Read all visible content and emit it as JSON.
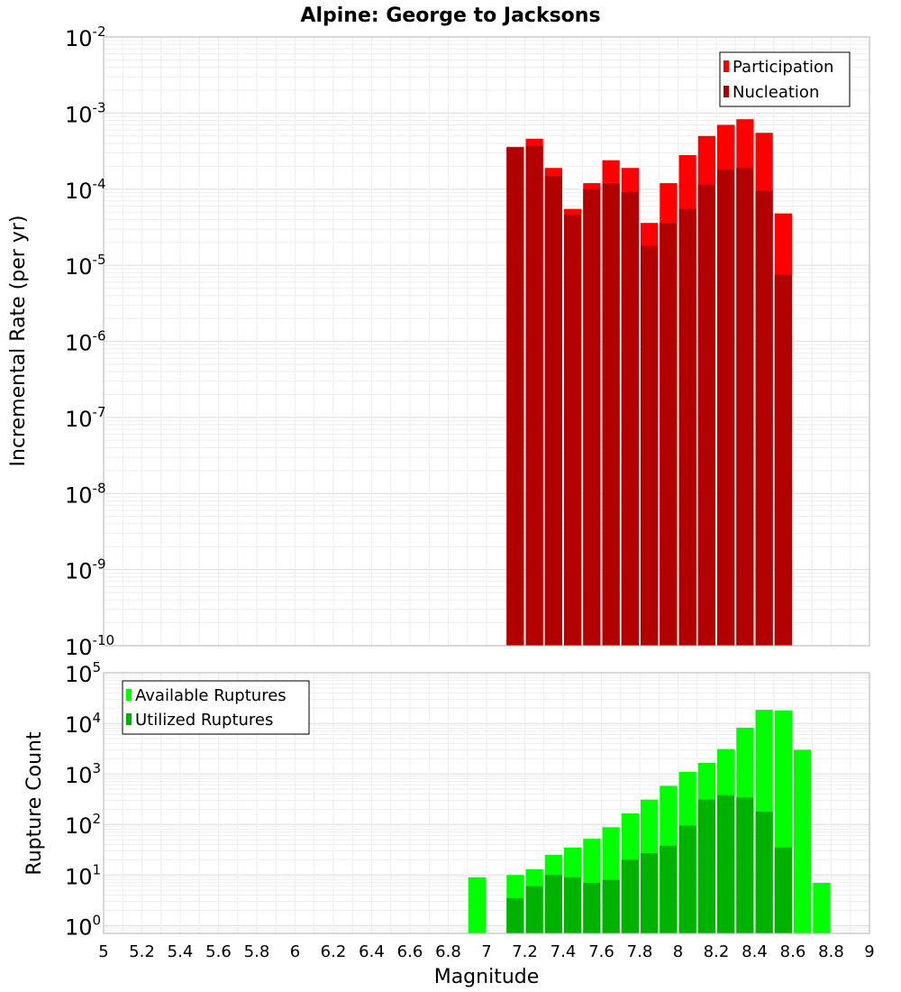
{
  "chart_data": [
    {
      "type": "bar",
      "title": "Alpine: George to Jacksons",
      "xlabel": "",
      "ylabel": "Incremental Rate (per yr)",
      "yscale": "log",
      "ylim": [
        1e-10,
        0.01
      ],
      "xlim": [
        5,
        9
      ],
      "y_tick_labels": [
        {
          "base": "10",
          "exp": "-10"
        },
        {
          "base": "10",
          "exp": "-9"
        },
        {
          "base": "10",
          "exp": "-8"
        },
        {
          "base": "10",
          "exp": "-7"
        },
        {
          "base": "10",
          "exp": "-6"
        },
        {
          "base": "10",
          "exp": "-5"
        },
        {
          "base": "10",
          "exp": "-4"
        },
        {
          "base": "10",
          "exp": "-3"
        },
        {
          "base": "10",
          "exp": "-2"
        }
      ],
      "legend_position": "top-right",
      "grid": true,
      "bar_width": 0.1,
      "x": [
        7.15,
        7.25,
        7.35,
        7.45,
        7.55,
        7.65,
        7.75,
        7.85,
        7.95,
        8.05,
        8.15,
        8.25,
        8.35,
        8.45,
        8.55
      ],
      "series": [
        {
          "name": "Participation",
          "color": "#ff0000",
          "values": [
            0.00036,
            0.00046,
            0.00019,
            5.5e-05,
            0.00012,
            0.00024,
            0.00019,
            3.6e-05,
            0.00012,
            0.00028,
            0.0005,
            0.0007,
            0.00083,
            0.00055,
            4.8e-05
          ]
        },
        {
          "name": "Nucleation",
          "color": "#b20000",
          "values": [
            0.00035,
            0.00037,
            0.00015,
            4.6e-05,
            0.0001,
            0.00012,
            9.2e-05,
            1.8e-05,
            3.6e-05,
            5.5e-05,
            0.000115,
            0.00018,
            0.00019,
            9.5e-05,
            7.5e-06
          ]
        }
      ]
    },
    {
      "type": "bar",
      "title": "",
      "xlabel": "Magnitude",
      "ylabel": "Rupture Count",
      "yscale": "log",
      "ylim": [
        0.7,
        100000
      ],
      "xlim": [
        5,
        9
      ],
      "y_tick_labels": [
        {
          "base": "10",
          "exp": "0"
        },
        {
          "base": "10",
          "exp": "1"
        },
        {
          "base": "10",
          "exp": "2"
        },
        {
          "base": "10",
          "exp": "3"
        },
        {
          "base": "10",
          "exp": "4"
        },
        {
          "base": "10",
          "exp": "5"
        }
      ],
      "x_ticks": [
        "5",
        "5.2",
        "5.4",
        "5.6",
        "5.8",
        "6",
        "6.2",
        "6.4",
        "6.6",
        "6.8",
        "7",
        "7.2",
        "7.4",
        "7.6",
        "7.8",
        "8",
        "8.2",
        "8.4",
        "8.6",
        "8.8",
        "9"
      ],
      "legend_position": "top-left",
      "grid": true,
      "bar_width": 0.1,
      "series": [
        {
          "name": "Available Ruptures",
          "color": "#00ff00",
          "x": [
            6.95,
            7.15,
            7.25,
            7.35,
            7.45,
            7.55,
            7.65,
            7.75,
            7.85,
            7.95,
            8.05,
            8.15,
            8.25,
            8.35,
            8.45,
            8.55,
            8.65,
            8.75
          ],
          "values": [
            9,
            10,
            13,
            25,
            35,
            52,
            88,
            165,
            310,
            580,
            1100,
            1650,
            3100,
            8200,
            18500,
            18000,
            3000,
            7
          ]
        },
        {
          "name": "Utilized Ruptures",
          "color": "#00b200",
          "x": [
            7.15,
            7.25,
            7.35,
            7.45,
            7.55,
            7.65,
            7.75,
            7.85,
            7.95,
            8.05,
            8.15,
            8.25,
            8.35,
            8.45,
            8.55
          ],
          "values": [
            3.5,
            6,
            10,
            9,
            7,
            8,
            20,
            27,
            38,
            95,
            310,
            380,
            340,
            180,
            35
          ]
        }
      ]
    }
  ]
}
